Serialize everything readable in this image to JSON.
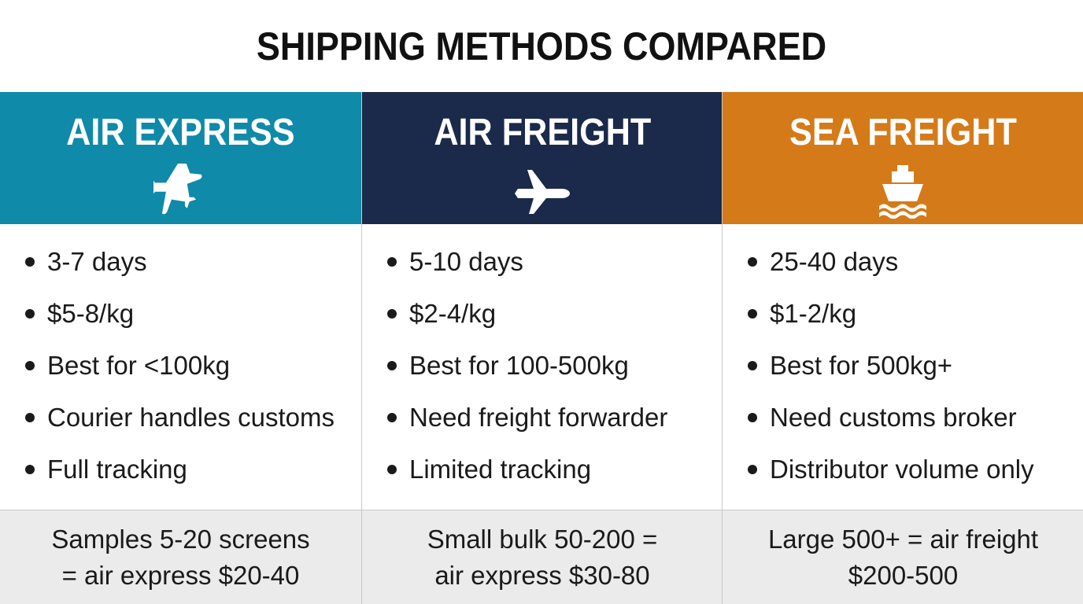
{
  "title": "SHIPPING METHODS COMPARED",
  "columns": [
    {
      "name": "AIR EXPRESS",
      "color": "#0f8aa8",
      "bullets": [
        "3-7 days",
        "$5-8/kg",
        "Best for <100kg",
        "Courier handles customs",
        "Full tracking"
      ],
      "footer": [
        "Samples 5-20 screens",
        "= air express $20-40"
      ]
    },
    {
      "name": "AIR FREIGHT",
      "color": "#1b2a4b",
      "bullets": [
        "5-10 days",
        "$2-4/kg",
        "Best for 100-500kg",
        "Need freight forwarder",
        "Limited tracking"
      ],
      "footer": [
        "Small bulk 50-200 =",
        "air express $30-80"
      ]
    },
    {
      "name": "SEA FREIGHT",
      "color": "#d57a18",
      "bullets": [
        "25-40 days",
        "$1-2/kg",
        "Best for 500kg+",
        "Need customs broker",
        "Distributor volume only"
      ],
      "footer": [
        "Large 500+ = air freight",
        "$200-500"
      ]
    }
  ]
}
